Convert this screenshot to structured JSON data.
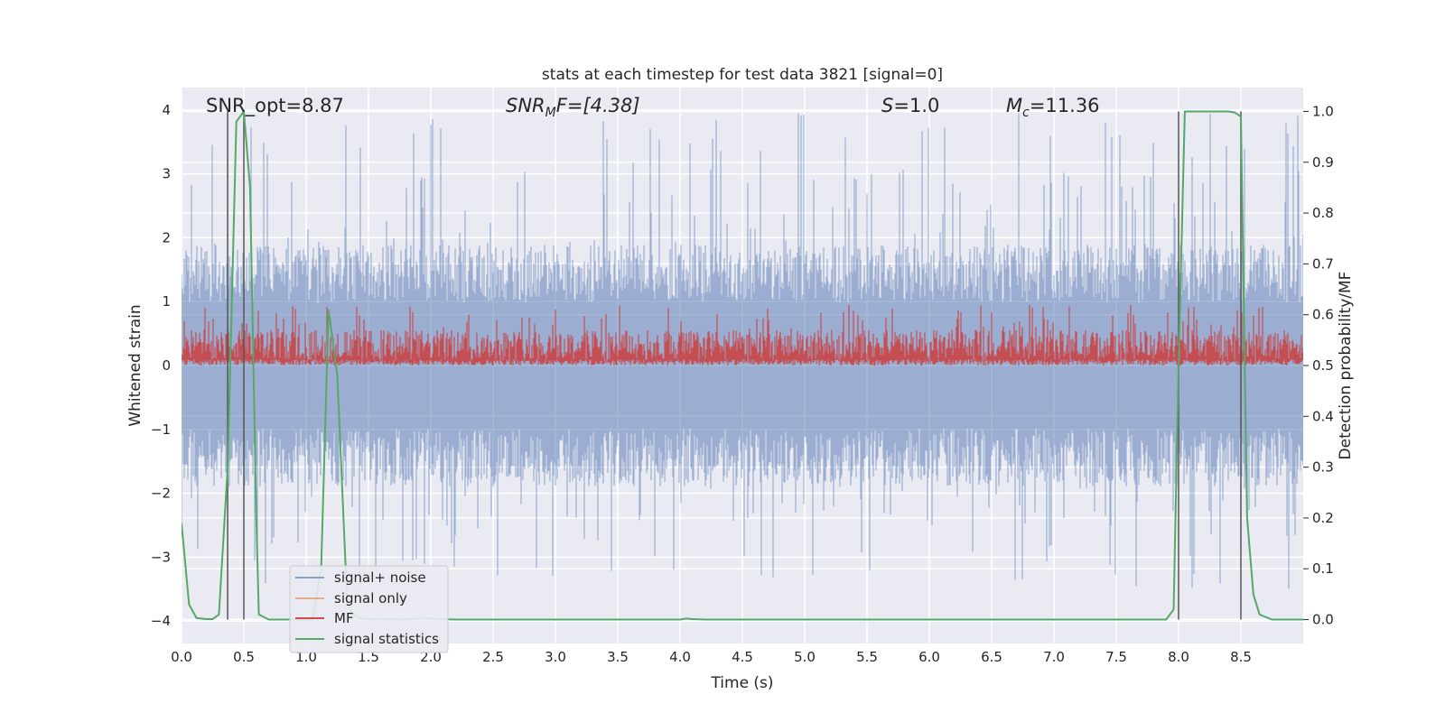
{
  "chart_data": {
    "type": "line",
    "title": "stats at each timestep for test data 3821 [signal=0]",
    "xlabel": "Time (s)",
    "ylabel_left": "Whitened strain",
    "ylabel_right": "Detection probability/MF",
    "xlim": [
      0.0,
      9.0
    ],
    "ylim_left": [
      -4.35,
      4.35
    ],
    "ylim_right": [
      -0.047,
      1.047
    ],
    "x_ticks": [
      "0.0",
      "0.5",
      "1.0",
      "1.5",
      "2.0",
      "2.5",
      "3.0",
      "3.5",
      "4.0",
      "4.5",
      "5.0",
      "5.5",
      "6.0",
      "6.5",
      "7.0",
      "7.5",
      "8.0",
      "8.5"
    ],
    "y_ticks_left": [
      "−4",
      "−3",
      "−2",
      "−1",
      "0",
      "1",
      "2",
      "3",
      "4"
    ],
    "y_ticks_right": [
      "0.0",
      "0.1",
      "0.2",
      "0.3",
      "0.4",
      "0.5",
      "0.6",
      "0.7",
      "0.8",
      "0.9",
      "1.0"
    ],
    "grid": true,
    "annotations": {
      "snr_opt": "SNR_opt=8.87",
      "snr_mf_name": "SNR",
      "snr_mf_sub": "M",
      "snr_mf_rest": "F=[4.38]",
      "s_name": "S",
      "s_rest": "=1.0",
      "mc_name": "M",
      "mc_sub": "c",
      "mc_rest": "=11.36"
    },
    "vertical_lines_x": [
      0.37,
      0.5,
      8.0,
      8.5
    ],
    "series": [
      {
        "name": "signal+ noise",
        "color": "#4c72b0",
        "axis": "left",
        "envelope": {
          "typical_max": 1.8,
          "peak_max": 4.0,
          "typical_min": -1.8,
          "peak_min": -3.5
        }
      },
      {
        "name": "signal only",
        "color": "#dd8452",
        "axis": "left",
        "values": []
      },
      {
        "name": "MF",
        "color": "#c44e52",
        "axis": "right",
        "envelope": {
          "min": 0.5,
          "typical_max": 0.57,
          "peak_max": 0.62
        }
      },
      {
        "name": "signal statistics",
        "color": "#55a868",
        "axis": "right",
        "x": [
          0.0,
          0.06,
          0.12,
          0.2,
          0.25,
          0.3,
          0.37,
          0.44,
          0.5,
          0.55,
          0.6,
          0.62,
          0.7,
          0.9,
          1.05,
          1.12,
          1.18,
          1.25,
          1.33,
          1.38,
          1.43,
          1.5,
          1.6,
          1.8,
          1.95,
          2.05,
          2.2,
          2.6,
          3.0,
          3.5,
          4.0,
          4.05,
          4.1,
          4.2,
          4.5,
          5.0,
          6.0,
          7.0,
          7.5,
          7.9,
          7.96,
          8.0,
          8.05,
          8.2,
          8.4,
          8.45,
          8.5,
          8.55,
          8.6,
          8.65,
          8.75,
          9.0
        ],
        "y": [
          0.19,
          0.03,
          0.003,
          0.001,
          0.001,
          0.01,
          0.3,
          0.98,
          1.0,
          0.85,
          0.2,
          0.01,
          0.0,
          0.0,
          0.0,
          0.1,
          0.61,
          0.48,
          0.03,
          0.01,
          0.003,
          0.001,
          0.001,
          0.0,
          0.003,
          0.001,
          0.0,
          0.0,
          0.0,
          0.0,
          0.0,
          0.002,
          0.001,
          0.0,
          0.0,
          0.0,
          0.0,
          0.0,
          0.0,
          0.0,
          0.02,
          0.5,
          1.0,
          1.0,
          1.0,
          0.998,
          0.99,
          0.2,
          0.05,
          0.01,
          0.0,
          0.0
        ]
      }
    ],
    "legend_position": "lower-left"
  }
}
